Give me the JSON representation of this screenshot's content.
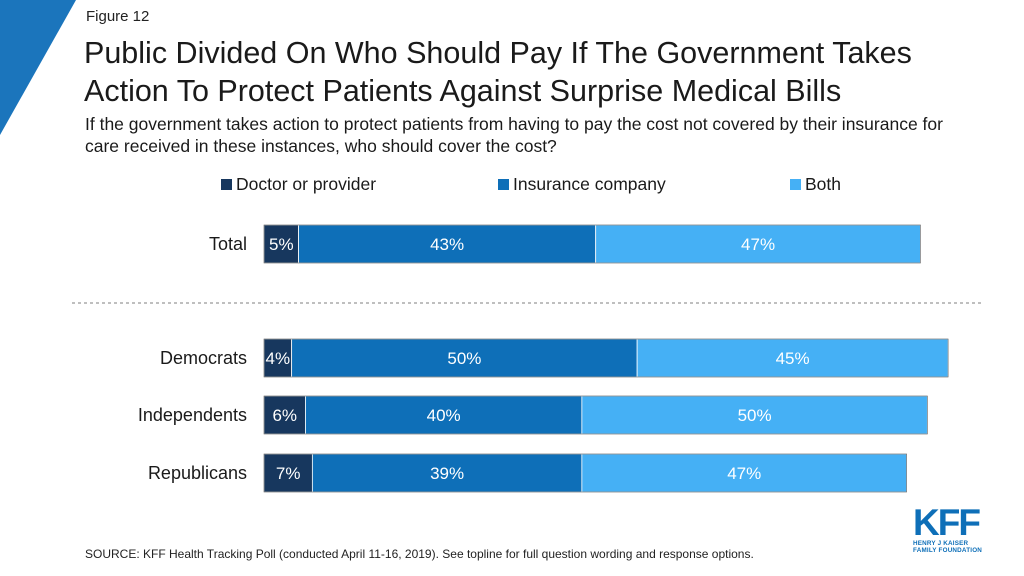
{
  "figure_label": "Figure 12",
  "title": "Public Divided On Who Should Pay If The Government Takes Action To Protect Patients Against Surprise Medical Bills",
  "subtitle": "If the government takes action to protect patients from having to pay the cost not covered by their insurance for care received in these instances, who should cover the cost?",
  "source": "SOURCE: KFF Health Tracking Poll (conducted April 11-16, 2019). See topline for full question wording and response options.",
  "logo": {
    "mark": "KFF",
    "line1": "HENRY J KAISER",
    "line2": "FAMILY FOUNDATION"
  },
  "colors": {
    "corner": "#1b75bc",
    "divider": "#7f7f7f"
  },
  "chart_data": {
    "type": "bar",
    "orientation": "horizontal",
    "stacked": true,
    "categories": [
      "Total",
      "Democrats",
      "Independents",
      "Republicans"
    ],
    "series": [
      {
        "name": "Doctor or provider",
        "color": "#17375e",
        "values": [
          5,
          4,
          6,
          7
        ]
      },
      {
        "name": "Insurance company",
        "color": "#0e6fb8",
        "values": [
          43,
          50,
          40,
          39
        ]
      },
      {
        "name": "Both",
        "color": "#45b0f5",
        "values": [
          47,
          45,
          50,
          47
        ]
      }
    ],
    "value_suffix": "%",
    "legend_position": "top",
    "grid": false
  }
}
